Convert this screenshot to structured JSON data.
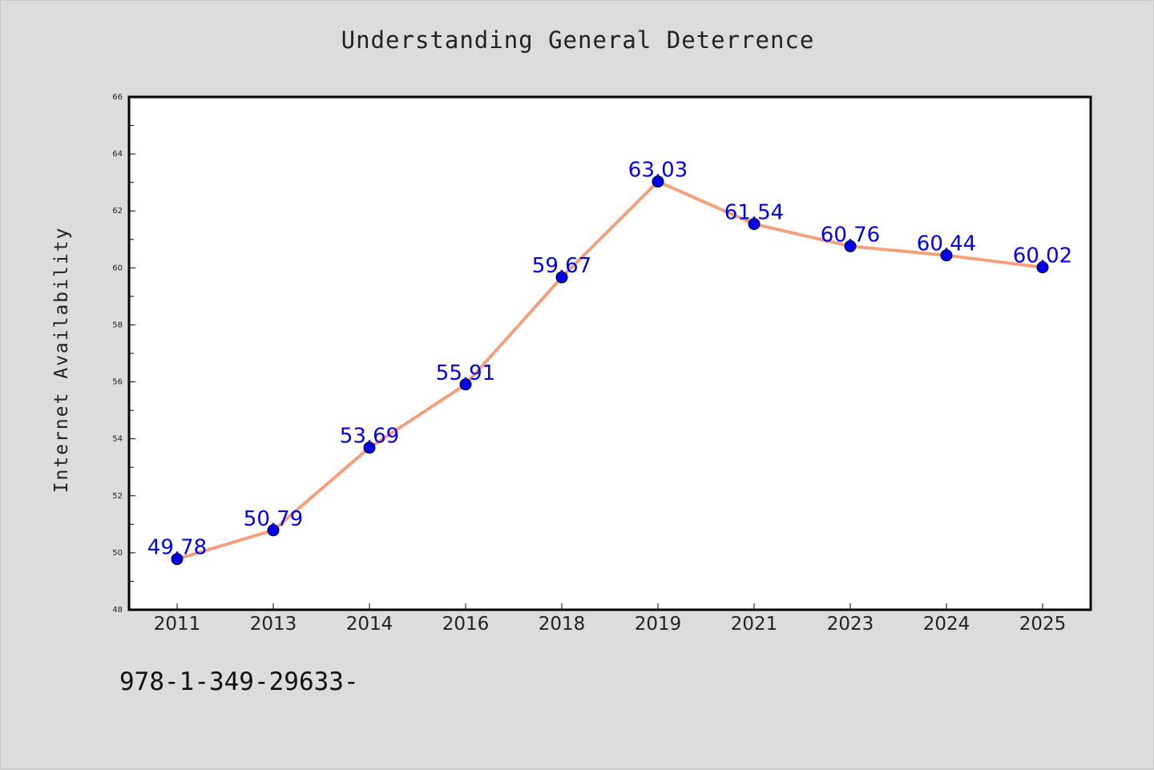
{
  "chart_data": {
    "type": "line",
    "title": "Understanding General Deterrence",
    "xlabel": "",
    "ylabel": "Internet Availability",
    "categories": [
      "2011",
      "2013",
      "2014",
      "2016",
      "2018",
      "2019",
      "2021",
      "2023",
      "2024",
      "2025"
    ],
    "values": [
      49.78,
      50.79,
      53.69,
      55.91,
      59.67,
      63.03,
      61.54,
      60.76,
      60.44,
      60.02
    ],
    "data_labels": [
      "49.78",
      "50.79",
      "53.69",
      "55.91",
      "59.67",
      "63.03",
      "61.54",
      "60.76",
      "60.44",
      "60.02"
    ],
    "ylim": [
      48,
      66
    ],
    "yticks": [
      48,
      50,
      52,
      54,
      56,
      58,
      60,
      62,
      64,
      66
    ],
    "grid": false,
    "line_color": "#f4a07c",
    "marker_color": "#0000ee",
    "label_color": "#0000ee",
    "plot_background": "#ffffff",
    "figure_background": "#dcdcdc"
  },
  "footer": {
    "code": "978-1-349-29633-"
  }
}
